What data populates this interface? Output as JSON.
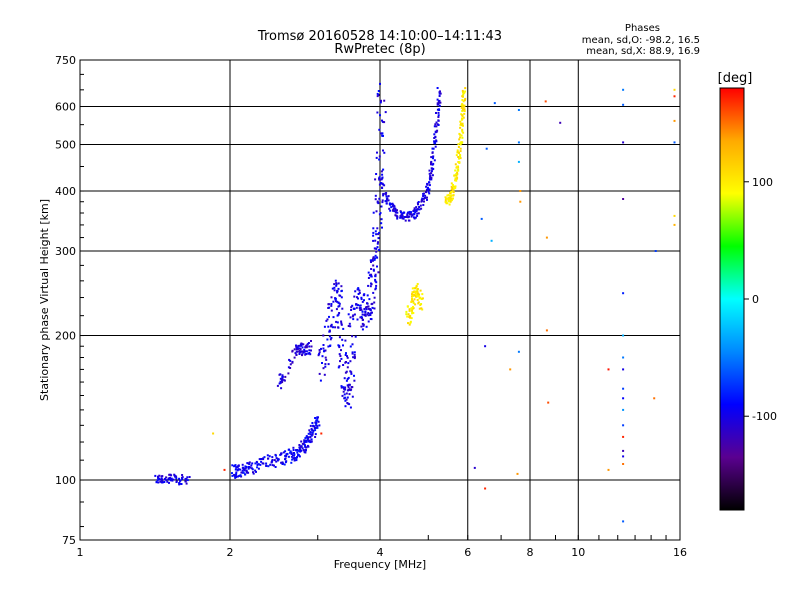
{
  "chart_data": {
    "type": "scatter",
    "title": "Tromsø 20160528 14:10:00–14:11:43",
    "subtitle": "RwPretec (8p)",
    "xlabel": "Frequency [MHz]",
    "ylabel": "Stationary phase Virtual Height [km]",
    "x_scale": "log",
    "y_scale": "log",
    "xlim": [
      1,
      16
    ],
    "ylim": [
      75,
      750
    ],
    "x_ticks": [
      1,
      2,
      4,
      6,
      8,
      10,
      16
    ],
    "x_tick_labels": [
      "1",
      "2",
      "4",
      "6",
      "8",
      "10",
      "16"
    ],
    "y_ticks": [
      75,
      100,
      200,
      300,
      400,
      500,
      600,
      750
    ],
    "y_tick_labels": [
      "75",
      "100",
      "200",
      "300",
      "400",
      "500",
      "600",
      "750"
    ],
    "grid": true,
    "phases_box": {
      "title": "Phases",
      "line1": "mean, sd,O: -98.2, 16.5",
      "line2": "mean, sd,X:  88.9, 16.9"
    },
    "colorbar": {
      "label": "[deg]",
      "range": [
        -180,
        180
      ],
      "ticks": [
        100,
        0,
        -100
      ],
      "tick_labels": [
        "100",
        "0",
        "-100"
      ],
      "colormap": [
        "#000000",
        "#5a0090",
        "#0000ff",
        "#0088ff",
        "#00ffff",
        "#00ff00",
        "#ffff00",
        "#ffaa00",
        "#ff0000"
      ]
    },
    "traces": [
      {
        "name": "",
        "phase": -100,
        "jitter": 0.03,
        "points": [
          [
            1.42,
            100
          ],
          [
            1.45,
            101
          ],
          [
            1.5,
            100
          ],
          [
            1.55,
            101
          ],
          [
            1.6,
            100
          ],
          [
            1.65,
            101
          ]
        ]
      },
      {
        "name": "",
        "phase": -95,
        "jitter": 0.04,
        "points": [
          [
            2.02,
            104
          ],
          [
            2.06,
            105
          ],
          [
            2.1,
            104
          ],
          [
            2.15,
            106
          ],
          [
            2.2,
            106
          ],
          [
            2.28,
            108
          ],
          [
            2.38,
            109
          ],
          [
            2.46,
            110
          ],
          [
            2.55,
            111
          ],
          [
            2.62,
            112
          ],
          [
            2.68,
            113
          ],
          [
            2.72,
            114
          ],
          [
            2.78,
            116
          ],
          [
            2.82,
            118
          ],
          [
            2.86,
            120
          ],
          [
            2.9,
            123
          ],
          [
            2.93,
            126
          ],
          [
            2.97,
            130
          ],
          [
            3.0,
            134
          ]
        ]
      },
      {
        "name": "",
        "phase": -105,
        "jitter": 0.04,
        "points": [
          [
            2.52,
            160
          ],
          [
            2.55,
            162
          ],
          [
            2.7,
            185
          ],
          [
            2.75,
            186
          ],
          [
            2.8,
            187
          ],
          [
            2.85,
            188
          ],
          [
            2.9,
            190
          ]
        ]
      },
      {
        "name": "",
        "phase": -100,
        "jitter": 0.07,
        "points": [
          [
            3.05,
            170
          ],
          [
            3.1,
            185
          ],
          [
            3.15,
            200
          ],
          [
            3.2,
            220
          ],
          [
            3.25,
            240
          ],
          [
            3.3,
            250
          ],
          [
            3.32,
            220
          ],
          [
            3.35,
            195
          ],
          [
            3.38,
            170
          ],
          [
            3.42,
            152
          ],
          [
            3.45,
            148
          ],
          [
            3.48,
            160
          ],
          [
            3.5,
            190
          ],
          [
            3.55,
            225
          ],
          [
            3.6,
            240
          ],
          [
            3.65,
            235
          ],
          [
            3.7,
            225
          ],
          [
            3.75,
            215
          ],
          [
            3.8,
            220
          ],
          [
            3.85,
            245
          ],
          [
            3.88,
            260
          ],
          [
            3.9,
            280
          ],
          [
            3.92,
            300
          ],
          [
            3.95,
            330
          ],
          [
            3.98,
            380
          ],
          [
            4.0,
            450
          ],
          [
            4.02,
            550
          ],
          [
            4.05,
            650
          ]
        ]
      },
      {
        "name": "",
        "phase": -100,
        "jitter": 0.03,
        "points": [
          [
            4.0,
            420
          ],
          [
            4.1,
            390
          ],
          [
            4.2,
            370
          ],
          [
            4.3,
            360
          ],
          [
            4.4,
            355
          ],
          [
            4.5,
            352
          ],
          [
            4.6,
            355
          ],
          [
            4.7,
            360
          ],
          [
            4.8,
            370
          ],
          [
            4.9,
            385
          ],
          [
            5.0,
            405
          ],
          [
            5.05,
            430
          ],
          [
            5.1,
            460
          ],
          [
            5.15,
            500
          ],
          [
            5.2,
            550
          ],
          [
            5.24,
            600
          ],
          [
            5.27,
            650
          ]
        ]
      },
      {
        "name": "",
        "phase": 100,
        "jitter": 0.04,
        "points": [
          [
            4.55,
            215
          ],
          [
            4.6,
            225
          ],
          [
            4.65,
            235
          ],
          [
            4.7,
            245
          ],
          [
            4.75,
            250
          ],
          [
            4.8,
            240
          ],
          [
            4.85,
            230
          ]
        ]
      },
      {
        "name": "",
        "phase": 100,
        "jitter": 0.03,
        "points": [
          [
            5.45,
            380
          ],
          [
            5.5,
            385
          ],
          [
            5.55,
            390
          ],
          [
            5.6,
            400
          ],
          [
            5.65,
            420
          ],
          [
            5.7,
            440
          ],
          [
            5.75,
            470
          ],
          [
            5.8,
            500
          ],
          [
            5.83,
            540
          ],
          [
            5.86,
            580
          ],
          [
            5.88,
            620
          ],
          [
            5.9,
            650
          ]
        ]
      }
    ],
    "scatter": [
      {
        "x": 1.85,
        "y": 125,
        "phase": 110
      },
      {
        "x": 1.95,
        "y": 105,
        "phase": 170
      },
      {
        "x": 3.05,
        "y": 125,
        "phase": 170
      },
      {
        "x": 6.2,
        "y": 106,
        "phase": -110
      },
      {
        "x": 6.5,
        "y": 96,
        "phase": 170
      },
      {
        "x": 6.4,
        "y": 350,
        "phase": -60
      },
      {
        "x": 6.55,
        "y": 490,
        "phase": -60
      },
      {
        "x": 6.7,
        "y": 315,
        "phase": -30
      },
      {
        "x": 6.8,
        "y": 610,
        "phase": -60
      },
      {
        "x": 6.5,
        "y": 190,
        "phase": -100
      },
      {
        "x": 7.3,
        "y": 170,
        "phase": 140
      },
      {
        "x": 7.55,
        "y": 103,
        "phase": 140
      },
      {
        "x": 7.6,
        "y": 590,
        "phase": -50
      },
      {
        "x": 7.6,
        "y": 505,
        "phase": -50
      },
      {
        "x": 7.6,
        "y": 460,
        "phase": -30
      },
      {
        "x": 7.65,
        "y": 400,
        "phase": 140
      },
      {
        "x": 7.65,
        "y": 380,
        "phase": 140
      },
      {
        "x": 7.6,
        "y": 185,
        "phase": -50
      },
      {
        "x": 8.6,
        "y": 615,
        "phase": 160
      },
      {
        "x": 8.65,
        "y": 320,
        "phase": 140
      },
      {
        "x": 8.65,
        "y": 205,
        "phase": 150
      },
      {
        "x": 8.7,
        "y": 145,
        "phase": 160
      },
      {
        "x": 9.2,
        "y": 555,
        "phase": -120
      },
      {
        "x": 11.5,
        "y": 105,
        "phase": 140
      },
      {
        "x": 11.5,
        "y": 170,
        "phase": 175
      },
      {
        "x": 12.3,
        "y": 650,
        "phase": -50
      },
      {
        "x": 12.3,
        "y": 605,
        "phase": -60
      },
      {
        "x": 12.3,
        "y": 505,
        "phase": -110
      },
      {
        "x": 12.3,
        "y": 385,
        "phase": -130
      },
      {
        "x": 12.3,
        "y": 245,
        "phase": -80
      },
      {
        "x": 12.3,
        "y": 200,
        "phase": -30
      },
      {
        "x": 12.3,
        "y": 180,
        "phase": -50
      },
      {
        "x": 12.3,
        "y": 170,
        "phase": -100
      },
      {
        "x": 12.3,
        "y": 155,
        "phase": -70
      },
      {
        "x": 12.3,
        "y": 148,
        "phase": -90
      },
      {
        "x": 12.3,
        "y": 140,
        "phase": -40
      },
      {
        "x": 12.3,
        "y": 130,
        "phase": -70
      },
      {
        "x": 12.3,
        "y": 123,
        "phase": 170
      },
      {
        "x": 12.3,
        "y": 115,
        "phase": -120
      },
      {
        "x": 12.3,
        "y": 112,
        "phase": -100
      },
      {
        "x": 12.3,
        "y": 108,
        "phase": 150
      },
      {
        "x": 12.3,
        "y": 82,
        "phase": -60
      },
      {
        "x": 14.2,
        "y": 148,
        "phase": 150
      },
      {
        "x": 14.3,
        "y": 300,
        "phase": -70
      },
      {
        "x": 15.6,
        "y": 650,
        "phase": 110
      },
      {
        "x": 15.6,
        "y": 630,
        "phase": 170
      },
      {
        "x": 15.6,
        "y": 560,
        "phase": 140
      },
      {
        "x": 15.6,
        "y": 505,
        "phase": -60
      },
      {
        "x": 15.6,
        "y": 355,
        "phase": 110
      },
      {
        "x": 15.6,
        "y": 340,
        "phase": 130
      }
    ]
  }
}
